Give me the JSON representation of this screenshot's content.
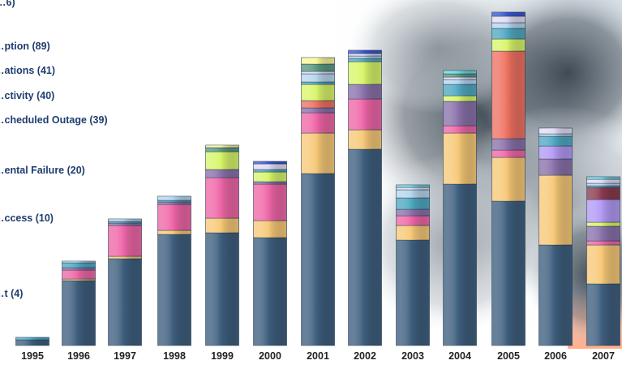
{
  "chart_data": {
    "type": "bar",
    "stacked": true,
    "categories": [
      "1995",
      "1996",
      "1997",
      "1998",
      "1999",
      "2000",
      "2001",
      "2002",
      "2003",
      "2004",
      "2005",
      "2006",
      "2007"
    ],
    "legend_labels": [
      "…6)",
      "…ption (89)",
      "…ations (41)",
      "…ctivity (40)",
      "…cheduled Outage (39)",
      "…ental Failure (20)",
      "…ccess (10)",
      "…t (4)"
    ],
    "palette": {
      "base": "#3f5f7f",
      "tan": "#f7c978",
      "pink": "#ef67a8",
      "purple": "#8a72aa",
      "salmon": "#ef7262",
      "lime": "#d8f66b",
      "violet": "#b39af4",
      "maroon": "#8a3a4e",
      "teal": "#50a9c2",
      "lightblue": "#b8d6ee",
      "lavender": "#e2dcf4",
      "green": "#5a9a80",
      "blue": "#3a55cf",
      "yellow": "#f8f79a",
      "cyan": "#6fd6e0"
    },
    "series_order": [
      "base",
      "tan",
      "pink",
      "purple",
      "salmon",
      "lime",
      "violet",
      "maroon",
      "teal",
      "lightblue",
      "lavender",
      "green",
      "blue",
      "yellow",
      "cyan"
    ],
    "values": {
      "1995": {
        "base": 7,
        "tan": 0,
        "pink": 0,
        "purple": 0,
        "salmon": 0,
        "lime": 0,
        "violet": 0,
        "maroon": 0,
        "teal": 3,
        "lightblue": 0,
        "lavender": 0,
        "green": 0,
        "blue": 0,
        "yellow": 0,
        "cyan": 0
      },
      "1996": {
        "base": 80,
        "tan": 2,
        "pink": 11,
        "purple": 3,
        "salmon": 0,
        "lime": 0,
        "violet": 0,
        "maroon": 0,
        "teal": 6,
        "lightblue": 2,
        "lavender": 0,
        "green": 0,
        "blue": 0,
        "yellow": 0,
        "cyan": 0
      },
      "1997": {
        "base": 107,
        "tan": 3,
        "pink": 38,
        "purple": 3,
        "salmon": 0,
        "lime": 0,
        "violet": 0,
        "maroon": 0,
        "teal": 2,
        "lightblue": 3,
        "lavender": 0,
        "green": 0,
        "blue": 0,
        "yellow": 0,
        "cyan": 0
      },
      "1998": {
        "base": 137,
        "tan": 5,
        "pink": 32,
        "purple": 3,
        "salmon": 0,
        "lime": 0,
        "violet": 0,
        "maroon": 0,
        "teal": 2,
        "lightblue": 5,
        "lavender": 0,
        "green": 0,
        "blue": 0,
        "yellow": 0,
        "cyan": 0
      },
      "1999": {
        "base": 139,
        "tan": 18,
        "pink": 50,
        "purple": 10,
        "salmon": 0,
        "lime": 22,
        "violet": 0,
        "maroon": 0,
        "teal": 0,
        "lightblue": 0,
        "lavender": 0,
        "green": 5,
        "blue": 0,
        "yellow": 3,
        "cyan": 0
      },
      "2000": {
        "base": 133,
        "tan": 21,
        "pink": 45,
        "purple": 3,
        "salmon": 0,
        "lime": 12,
        "violet": 0,
        "maroon": 0,
        "teal": 3,
        "lightblue": 0,
        "lavender": 7,
        "green": 0,
        "blue": 3,
        "yellow": 0,
        "cyan": 0
      },
      "2001": {
        "base": 212,
        "tan": 50,
        "pink": 25,
        "purple": 6,
        "salmon": 9,
        "lime": 20,
        "violet": 0,
        "maroon": 0,
        "teal": 3,
        "lightblue": 10,
        "lavender": 3,
        "green": 9,
        "blue": 0,
        "yellow": 8,
        "cyan": 0
      },
      "2002": {
        "base": 242,
        "tan": 24,
        "pink": 38,
        "purple": 18,
        "salmon": 0,
        "lime": 28,
        "violet": 0,
        "maroon": 0,
        "teal": 4,
        "lightblue": 3,
        "lavender": 3,
        "green": 0,
        "blue": 4,
        "yellow": 0,
        "cyan": 0
      },
      "2003": {
        "base": 130,
        "tan": 18,
        "pink": 12,
        "purple": 8,
        "salmon": 0,
        "lime": 0,
        "violet": 0,
        "maroon": 0,
        "teal": 14,
        "lightblue": 10,
        "lavender": 3,
        "green": 0,
        "blue": 0,
        "yellow": 0,
        "cyan": 3
      },
      "2004": {
        "base": 199,
        "tan": 63,
        "pink": 9,
        "purple": 30,
        "salmon": 0,
        "lime": 7,
        "violet": 0,
        "maroon": 0,
        "teal": 14,
        "lightblue": 6,
        "lavender": 3,
        "green": 4,
        "blue": 0,
        "yellow": 0,
        "cyan": 4
      },
      "2005": {
        "base": 178,
        "tan": 54,
        "pink": 9,
        "purple": 14,
        "salmon": 108,
        "lime": 15,
        "violet": 0,
        "maroon": 0,
        "teal": 13,
        "lightblue": 7,
        "lavender": 8,
        "green": 0,
        "blue": 5,
        "yellow": 0,
        "cyan": 0
      },
      "2006": {
        "base": 124,
        "tan": 86,
        "pink": 0,
        "purple": 20,
        "salmon": 0,
        "lime": 0,
        "violet": 16,
        "maroon": 0,
        "teal": 12,
        "lightblue": 3,
        "lavender": 7,
        "green": 0,
        "blue": 0,
        "yellow": 0,
        "cyan": 0
      },
      "2007": {
        "base": 76,
        "tan": 48,
        "pink": 5,
        "purple": 18,
        "salmon": 0,
        "lime": 5,
        "violet": 28,
        "maroon": 15,
        "teal": 2,
        "lightblue": 3,
        "lavender": 5,
        "green": 0,
        "blue": 0,
        "yellow": 0,
        "cyan": 3
      }
    },
    "ylim": [
      0,
      420
    ],
    "grid": false,
    "legend_placement": "left"
  }
}
